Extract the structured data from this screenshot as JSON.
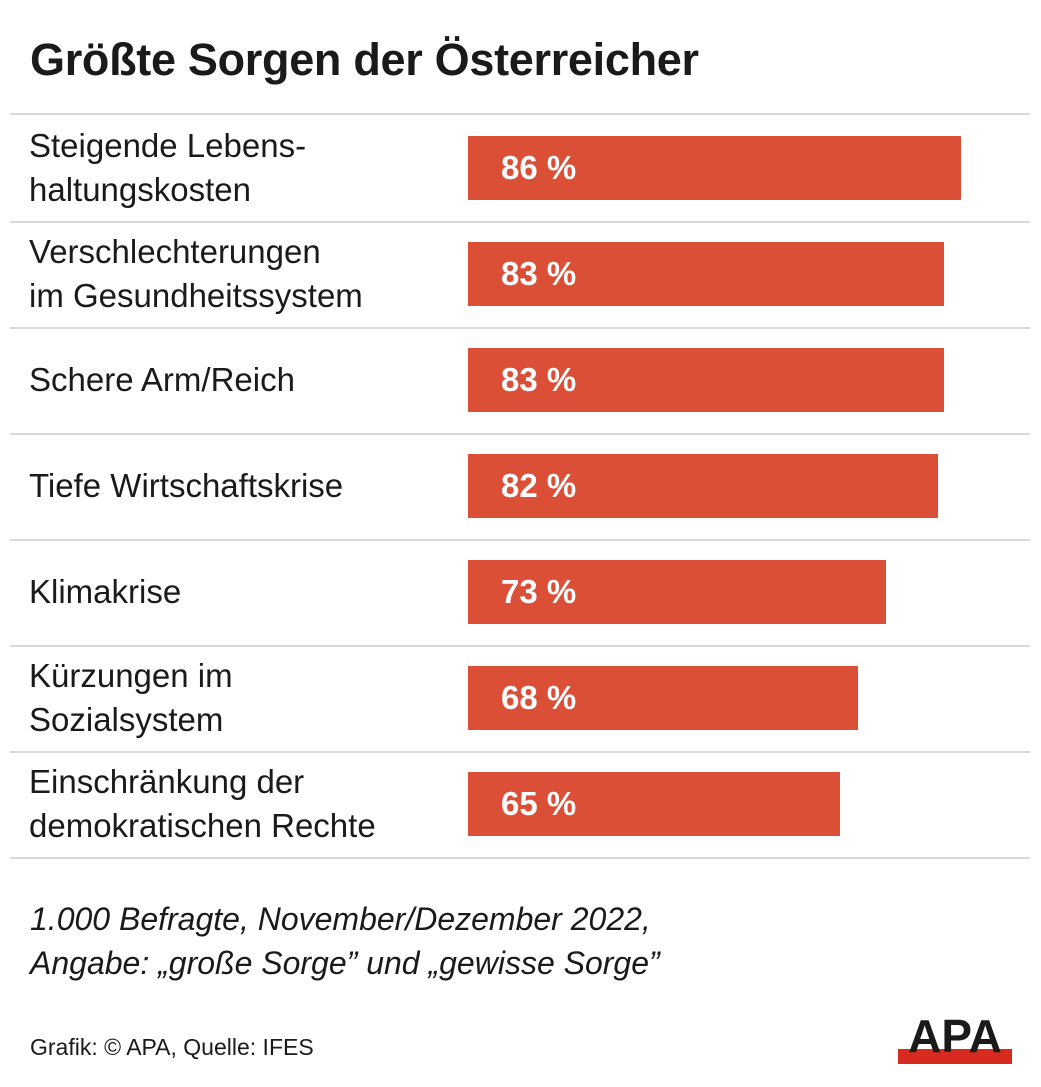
{
  "title": "Größte Sorgen der Österreicher",
  "chart_data": {
    "type": "bar",
    "orientation": "horizontal",
    "title": "Größte Sorgen der Österreicher",
    "categories": [
      "Steigende Lebens-\nhaltungskosten",
      "Verschlechterungen\nim Gesundheitssystem",
      "Schere Arm/Reich",
      "Tiefe Wirtschaftskrise",
      "Klimakrise",
      "Kürzungen im\nSozialsystem",
      "Einschränkung der\ndemokratischen Rechte"
    ],
    "values": [
      86,
      83,
      83,
      82,
      73,
      68,
      65
    ],
    "value_labels": [
      "86 %",
      "83 %",
      "83 %",
      "82 %",
      "73 %",
      "68 %",
      "65 %"
    ],
    "unit": "%",
    "xlim": [
      0,
      100
    ],
    "bar_color": "#dc4f37",
    "grid": false
  },
  "note": "1.000 Befragte, November/Dezember 2022,\nAngabe: „große Sorge” und „gewisse Sorge”",
  "credit": "Grafik: © APA, Quelle: IFES",
  "logo": "APA"
}
